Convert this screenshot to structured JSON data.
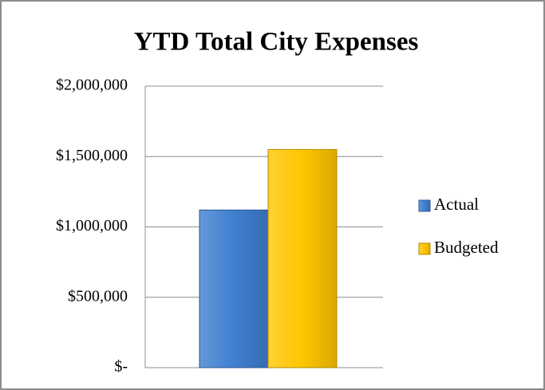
{
  "chart_data": {
    "type": "bar",
    "title": "YTD Total City Expenses",
    "categories": [
      null
    ],
    "series": [
      {
        "name": "Actual",
        "color": "#3f7fd0",
        "values": [
          1120000
        ]
      },
      {
        "name": "Budgeted",
        "color": "#ffc600",
        "values": [
          1550000
        ]
      }
    ],
    "ylim": [
      0,
      2000000
    ],
    "yticks": [
      {
        "value": 0,
        "label": "$-"
      },
      {
        "value": 500000,
        "label": "$500,000"
      },
      {
        "value": 1000000,
        "label": "$1,000,000"
      },
      {
        "value": 1500000,
        "label": "$1,500,000"
      },
      {
        "value": 2000000,
        "label": "$2,000,000"
      }
    ],
    "grid": true,
    "legend": "right"
  }
}
